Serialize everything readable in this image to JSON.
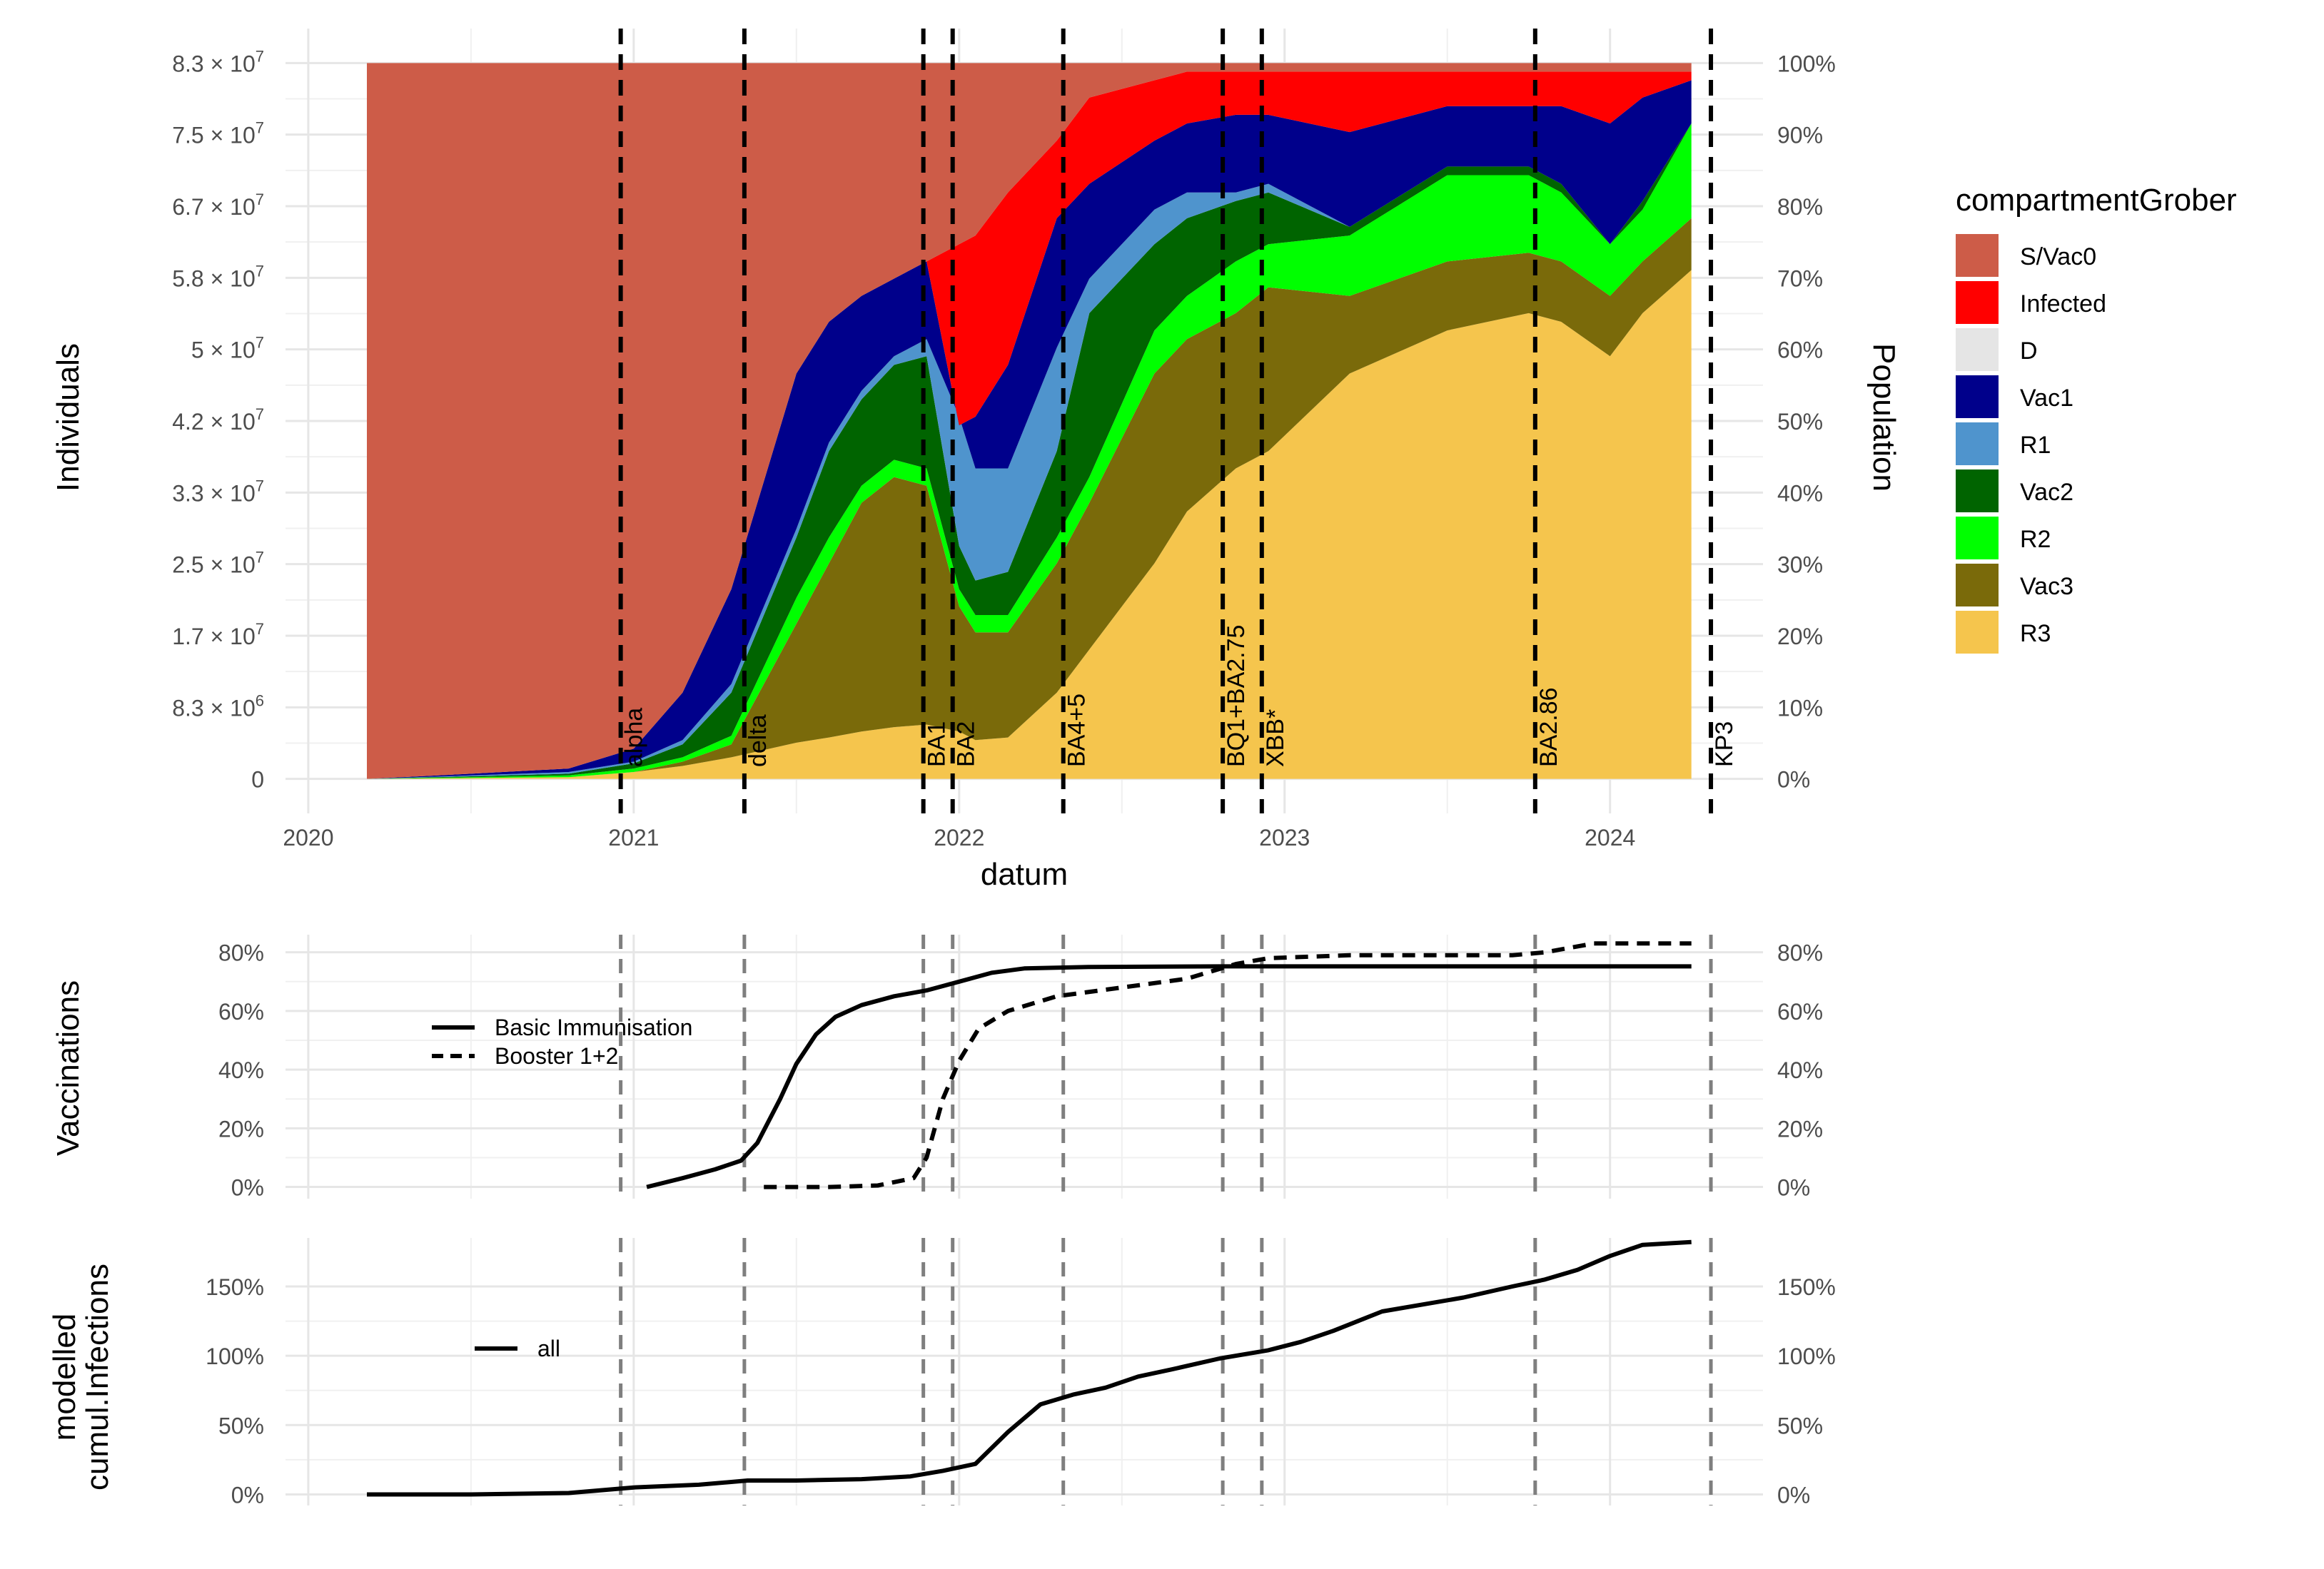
{
  "chart_data": [
    {
      "type": "area",
      "title": "",
      "xlabel": "datum",
      "ylabel": "Individuals",
      "ylabel_right": "Population",
      "x_ticks": [
        "2020",
        "2021",
        "2022",
        "2023",
        "2024"
      ],
      "x_tick_values": [
        2020.0,
        2021.0,
        2022.0,
        2023.0,
        2024.0
      ],
      "xlim": [
        2019.93,
        2024.47
      ],
      "ylim": [
        -4000000,
        87000000
      ],
      "y_ticks": [
        {
          "v": 0,
          "m": "0",
          "e": ""
        },
        {
          "v": 8300000,
          "m": "8.3 × 10",
          "e": "6"
        },
        {
          "v": 16600000,
          "m": "1.7 × 10",
          "e": "7"
        },
        {
          "v": 24900000,
          "m": "2.5 × 10",
          "e": "7"
        },
        {
          "v": 33200000,
          "m": "3.3 × 10",
          "e": "7"
        },
        {
          "v": 41500000,
          "m": "4.2 × 10",
          "e": "7"
        },
        {
          "v": 49800000,
          "m": "5 × 10",
          "e": "7"
        },
        {
          "v": 58100000,
          "m": "5.8 × 10",
          "e": "7"
        },
        {
          "v": 66400000,
          "m": "6.7 × 10",
          "e": "7"
        },
        {
          "v": 74700000,
          "m": "7.5 × 10",
          "e": "7"
        },
        {
          "v": 83000000,
          "m": "8.3 × 10",
          "e": "7"
        }
      ],
      "y_ticks_right": [
        "0%",
        "10%",
        "20%",
        "30%",
        "40%",
        "50%",
        "60%",
        "70%",
        "80%",
        "90%",
        "100%"
      ],
      "total_population": 83000000,
      "legend_title": "compartmentGrober",
      "legend_position": "right",
      "x": [
        2020.18,
        2020.5,
        2020.8,
        2021.0,
        2021.15,
        2021.3,
        2021.5,
        2021.6,
        2021.7,
        2021.8,
        2021.9,
        2022.0,
        2022.05,
        2022.15,
        2022.3,
        2022.4,
        2022.6,
        2022.7,
        2022.85,
        2022.95,
        2023.2,
        2023.5,
        2023.75,
        2023.85,
        2024.0,
        2024.1,
        2024.25
      ],
      "cumulative_boundaries": [
        {
          "name": "R3 top",
          "values": [
            0,
            0.1,
            0.2,
            0.8,
            1.5,
            2.5,
            4.2,
            4.8,
            5.5,
            6.0,
            6.3,
            5.5,
            4.5,
            4.8,
            10,
            15,
            25,
            31,
            36,
            38,
            47,
            52,
            54,
            53,
            49,
            54,
            59
          ]
        },
        {
          "name": "Vac3 top",
          "values": [
            0,
            0.1,
            0.2,
            0.8,
            2,
            4,
            18,
            25,
            32,
            35,
            34,
            20,
            17,
            17,
            25,
            32,
            47,
            51,
            54,
            57,
            56,
            60,
            61,
            60,
            56,
            60,
            65
          ]
        },
        {
          "name": "R2 top",
          "values": [
            0,
            0.2,
            0.4,
            1.2,
            2.5,
            5,
            21,
            28,
            34,
            37,
            36,
            22,
            19,
            19,
            28,
            35,
            52,
            56,
            60,
            62,
            63,
            70,
            70,
            68,
            62,
            66,
            76
          ]
        },
        {
          "name": "Vac2 top",
          "values": [
            0,
            0.3,
            0.6,
            1.8,
            4,
            10,
            28,
            38,
            44,
            48,
            49,
            27,
            23,
            24,
            38,
            54,
            62,
            65,
            67,
            68,
            64,
            71,
            71,
            69,
            62,
            67,
            76
          ]
        },
        {
          "name": "R1 top",
          "values": [
            0,
            0.4,
            0.8,
            2.0,
            4.5,
            11,
            29,
            39,
            45,
            49,
            51,
            42,
            36,
            36,
            50,
            58,
            66,
            68,
            68,
            69,
            64,
            71,
            71,
            69,
            62,
            67,
            76
          ]
        },
        {
          "name": "Vac1 top",
          "values": [
            0,
            0.6,
            1.2,
            3.5,
            10,
            22,
            47,
            53,
            56,
            58,
            60,
            41,
            42,
            48,
            65,
            69,
            74,
            76,
            77,
            77,
            75,
            78,
            78,
            78,
            76,
            79,
            81
          ]
        },
        {
          "name": "D top",
          "values": [
            0,
            0.6,
            1.2,
            3.5,
            10,
            22,
            47,
            53,
            56,
            58,
            60,
            41,
            42,
            48,
            65,
            69,
            74,
            76,
            77,
            77,
            75,
            78,
            78,
            78,
            76,
            79,
            81
          ]
        },
        {
          "name": "Infected top",
          "values": [
            0,
            0.6,
            1.2,
            3.5,
            10,
            22,
            47,
            53,
            56,
            58,
            60,
            62,
            63,
            68,
            74,
            79,
            81,
            82,
            82,
            82,
            82,
            82,
            82,
            82,
            82,
            82,
            82
          ]
        },
        {
          "name": "S/Vac0 top",
          "values": [
            83,
            83,
            83,
            83,
            83,
            83,
            83,
            83,
            83,
            83,
            83,
            83,
            83,
            83,
            83,
            83,
            83,
            83,
            83,
            83,
            83,
            83,
            83,
            83,
            83,
            83,
            83
          ]
        }
      ],
      "boundary_units": "million individuals",
      "series": [
        {
          "name": "S/Vac0",
          "color": "#cd5c48"
        },
        {
          "name": "Infected",
          "color": "#ff0000"
        },
        {
          "name": "D",
          "color": "#e5e5e5"
        },
        {
          "name": "Vac1",
          "color": "#00008b"
        },
        {
          "name": "R1",
          "color": "#4f94cd"
        },
        {
          "name": "Vac2",
          "color": "#006400"
        },
        {
          "name": "R2",
          "color": "#00ff00"
        },
        {
          "name": "Vac3",
          "color": "#7a6a0a"
        },
        {
          "name": "R3",
          "color": "#f5c54d"
        }
      ],
      "variant_lines": [
        {
          "label": "alpha",
          "x": 2020.96
        },
        {
          "label": "delta",
          "x": 2021.34
        },
        {
          "label": "BA1",
          "x": 2021.89
        },
        {
          "label": "BA2",
          "x": 2021.98
        },
        {
          "label": "BA4+5",
          "x": 2022.32
        },
        {
          "label": "BQ1+BA2.75",
          "x": 2022.81
        },
        {
          "label": "XBB*",
          "x": 2022.93
        },
        {
          "label": "BA2.86",
          "x": 2023.77
        },
        {
          "label": "KP3",
          "x": 2024.31
        }
      ]
    },
    {
      "type": "line",
      "ylabel": "Vaccinations",
      "ylim": [
        -0.04,
        0.86
      ],
      "y_ticks": [
        "0%",
        "20%",
        "40%",
        "60%",
        "80%"
      ],
      "y_tick_values": [
        0,
        0.2,
        0.4,
        0.6,
        0.8
      ],
      "legend_position": "top-left",
      "series": [
        {
          "name": "Basic Immunisation",
          "dash": "solid",
          "x": [
            2021.04,
            2021.15,
            2021.25,
            2021.33,
            2021.38,
            2021.45,
            2021.5,
            2021.56,
            2021.62,
            2021.7,
            2021.8,
            2021.9,
            2022.0,
            2022.1,
            2022.2,
            2022.4,
            2022.8,
            2023.2,
            2024.25
          ],
          "values": [
            0.0,
            0.03,
            0.06,
            0.09,
            0.15,
            0.3,
            0.42,
            0.52,
            0.58,
            0.62,
            0.65,
            0.67,
            0.7,
            0.73,
            0.745,
            0.75,
            0.752,
            0.752,
            0.752
          ]
        },
        {
          "name": "Booster 1+2",
          "dash": "dashed",
          "x": [
            2021.4,
            2021.6,
            2021.75,
            2021.86,
            2021.9,
            2021.95,
            2022.0,
            2022.06,
            2022.15,
            2022.3,
            2022.5,
            2022.7,
            2022.85,
            2022.95,
            2023.2,
            2023.7,
            2023.8,
            2023.95,
            2024.25
          ],
          "values": [
            0.0,
            0.0,
            0.005,
            0.03,
            0.1,
            0.3,
            0.43,
            0.54,
            0.6,
            0.65,
            0.68,
            0.71,
            0.76,
            0.78,
            0.79,
            0.79,
            0.8,
            0.83,
            0.83
          ]
        }
      ],
      "variant_lines_x": [
        2020.96,
        2021.34,
        2021.89,
        2021.98,
        2022.32,
        2022.81,
        2022.93,
        2023.77,
        2024.31
      ]
    },
    {
      "type": "line",
      "ylabel": "modelled cumul.Infections",
      "ylim": [
        -0.08,
        1.85
      ],
      "y_ticks": [
        "0%",
        "50%",
        "100%",
        "150%"
      ],
      "y_tick_values": [
        0,
        0.5,
        1.0,
        1.5
      ],
      "legend_position": "middle-left",
      "series": [
        {
          "name": "all",
          "dash": "solid",
          "x": [
            2020.18,
            2020.5,
            2020.8,
            2021.0,
            2021.2,
            2021.35,
            2021.5,
            2021.7,
            2021.85,
            2021.95,
            2022.05,
            2022.15,
            2022.25,
            2022.35,
            2022.45,
            2022.55,
            2022.65,
            2022.8,
            2022.95,
            2023.05,
            2023.15,
            2023.3,
            2023.45,
            2023.55,
            2023.7,
            2023.8,
            2023.9,
            2024.0,
            2024.1,
            2024.25
          ],
          "values": [
            0.0,
            0.0,
            0.01,
            0.05,
            0.07,
            0.1,
            0.1,
            0.11,
            0.13,
            0.17,
            0.22,
            0.45,
            0.65,
            0.72,
            0.77,
            0.85,
            0.9,
            0.98,
            1.04,
            1.1,
            1.18,
            1.32,
            1.38,
            1.42,
            1.5,
            1.55,
            1.62,
            1.72,
            1.8,
            1.82
          ]
        }
      ],
      "variant_lines_x": [
        2020.96,
        2021.34,
        2021.89,
        2021.98,
        2022.32,
        2022.81,
        2022.93,
        2023.77,
        2024.31
      ]
    }
  ]
}
